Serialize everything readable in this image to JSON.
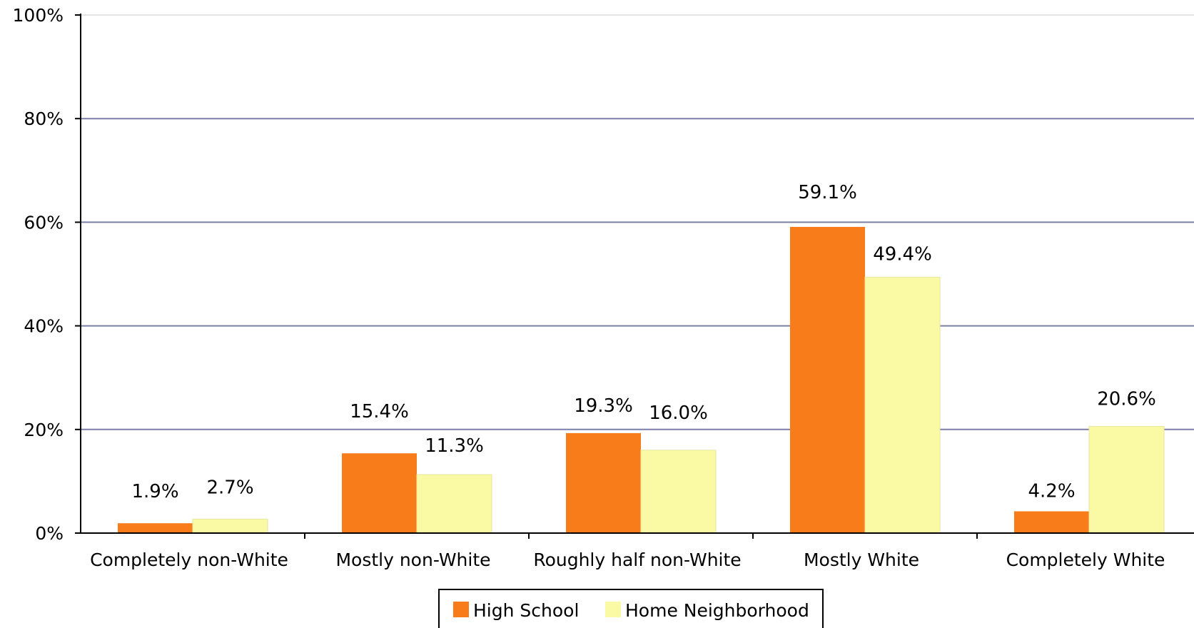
{
  "chart_data": {
    "type": "bar",
    "title": "",
    "xlabel": "",
    "ylabel": "",
    "ylim": [
      0,
      100
    ],
    "yticks": [
      "0%",
      "20%",
      "40%",
      "60%",
      "80%",
      "100%"
    ],
    "categories": [
      "Completely non-White",
      "Mostly non-White",
      "Roughly half non-White",
      "Mostly White",
      "Completely White"
    ],
    "series": [
      {
        "name": "High School",
        "color": "#F97C1B",
        "values": [
          1.9,
          15.4,
          19.3,
          59.1,
          4.2
        ],
        "labels": [
          "1.9%",
          "15.4%",
          "19.3%",
          "59.1%",
          "4.2%"
        ]
      },
      {
        "name": "Home Neighborhood",
        "color": "#FAFAA5",
        "values": [
          2.7,
          11.3,
          16.0,
          49.4,
          20.6
        ],
        "labels": [
          "2.7%",
          "11.3%",
          "16.0%",
          "49.4%",
          "20.6%"
        ]
      }
    ],
    "grid": true,
    "gridline_color": "#7A7FA8",
    "legend_position": "bottom"
  }
}
